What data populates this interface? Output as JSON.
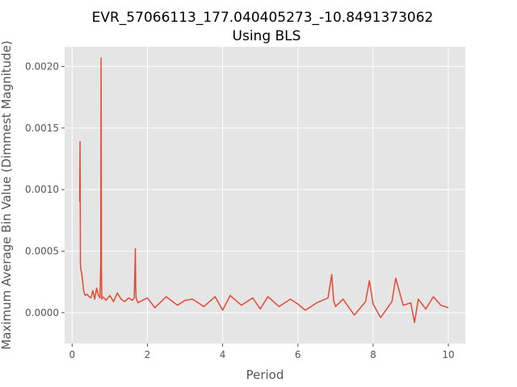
{
  "chart_data": {
    "type": "line",
    "title": "EVR_57066113_177.040405273_-10.8491373062",
    "subtitle": "Using BLS",
    "xlabel": "Period",
    "ylabel": "Maximum Average Bin Value (Dimmest Magnitude)",
    "xlim": [
      -0.2,
      10.45
    ],
    "ylim": [
      -0.00025,
      0.00216
    ],
    "xticks": [
      0,
      2,
      4,
      6,
      8,
      10
    ],
    "xtick_labels": [
      "0",
      "2",
      "4",
      "6",
      "8",
      "10"
    ],
    "yticks": [
      0.0,
      0.0005,
      0.001,
      0.0015,
      0.002
    ],
    "ytick_labels": [
      "0.0000",
      "0.0005",
      "0.0010",
      "0.0015",
      "0.0020"
    ],
    "grid": true,
    "style": "ggplot",
    "colors": {
      "line": "#E24A33",
      "plot_bg": "#E5E5E5",
      "grid": "#FFFFFF",
      "text": "#555555"
    },
    "series": [
      {
        "x": [
          0.2,
          0.21,
          0.22,
          0.23,
          0.25,
          0.28,
          0.3,
          0.32,
          0.35,
          0.4,
          0.45,
          0.5,
          0.55,
          0.6,
          0.65,
          0.7,
          0.74,
          0.76,
          0.77,
          0.78,
          0.79,
          0.8,
          0.85,
          0.9,
          1.0,
          1.1,
          1.2,
          1.3,
          1.4,
          1.5,
          1.6,
          1.65,
          1.68,
          1.69,
          1.7,
          1.72,
          1.75,
          1.8,
          2.0,
          2.2,
          2.5,
          2.8,
          3.0,
          3.2,
          3.5,
          3.8,
          4.0,
          4.2,
          4.5,
          4.8,
          5.0,
          5.2,
          5.5,
          5.8,
          6.0,
          6.2,
          6.5,
          6.8,
          6.9,
          6.95,
          7.0,
          7.2,
          7.5,
          7.8,
          7.9,
          8.0,
          8.2,
          8.5,
          8.6,
          8.8,
          9.0,
          9.1,
          9.2,
          9.4,
          9.6,
          9.8,
          10.0
        ],
        "y": [
          0.0009,
          0.00139,
          0.0004,
          0.00035,
          0.00033,
          0.00025,
          0.00019,
          0.00016,
          0.00014,
          0.00015,
          0.00013,
          0.00012,
          0.00018,
          0.00011,
          0.0002,
          0.00014,
          0.00012,
          0.0004,
          0.00207,
          0.0003,
          0.00011,
          0.00013,
          0.00012,
          0.0001,
          0.00014,
          9e-05,
          0.00016,
          0.00011,
          9e-05,
          0.00012,
          0.0001,
          0.00012,
          0.00052,
          0.0002,
          0.00012,
          0.0001,
          8e-05,
          9e-05,
          0.00012,
          4e-05,
          0.00013,
          6e-05,
          0.0001,
          0.00011,
          5e-05,
          0.00013,
          2e-05,
          0.00014,
          6e-05,
          0.00012,
          3e-05,
          0.00013,
          5e-05,
          0.00011,
          7e-05,
          2e-05,
          8e-05,
          0.00012,
          0.00031,
          0.0001,
          5e-05,
          0.00011,
          -2e-05,
          9e-05,
          0.00026,
          7e-05,
          -4e-05,
          9e-05,
          0.00028,
          6e-05,
          8e-05,
          -8e-05,
          0.00011,
          3e-05,
          0.00013,
          6e-05,
          4e-05
        ]
      }
    ]
  }
}
